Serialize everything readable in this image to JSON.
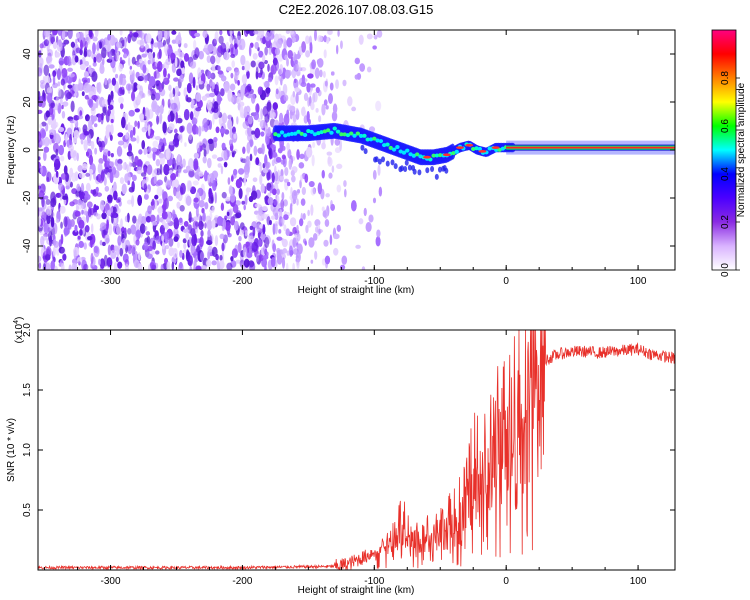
{
  "title": "C2E2.2026.107.08.03.G15",
  "chart_data": [
    {
      "type": "heatmap",
      "name": "spectrogram",
      "xlabel": "Height of straight line (km)",
      "ylabel": "Frequency (Hz)",
      "xlim": [
        -355,
        128
      ],
      "ylim": [
        -50,
        50
      ],
      "xticks": [
        -300,
        -200,
        -100,
        0,
        100
      ],
      "yticks": [
        -40,
        -20,
        0,
        20,
        40
      ],
      "xtick_labels": [
        "-300",
        "-200",
        "-100",
        "0",
        "100"
      ],
      "ytick_labels": [
        "-40",
        "-20",
        "0",
        "20",
        "40"
      ],
      "colorbar": {
        "label": "Normalized spectral amplitude",
        "range": [
          0,
          1
        ],
        "ticks": [
          0.0,
          0.2,
          0.4,
          0.6,
          0.8
        ],
        "tick_labels": [
          "0.0",
          "0.2",
          "0.4",
          "0.6",
          "0.8"
        ],
        "colors": [
          "#ffffff",
          "#d9b3ff",
          "#8a2be2",
          "#4b00ff",
          "#0000ff",
          "#00ffff",
          "#00ff00",
          "#ffff00",
          "#ff8000",
          "#ff0000",
          "#ff0080"
        ]
      },
      "signal_track": {
        "x": [
          -175,
          -150,
          -130,
          -110,
          -95,
          -80,
          -65,
          -55,
          -45,
          -35,
          -28,
          -22,
          -15,
          -8,
          0,
          50,
          128
        ],
        "freq": [
          7,
          7,
          8,
          6,
          3,
          0,
          -3,
          -3,
          -2,
          1,
          2,
          0,
          -1,
          1,
          1,
          1,
          1
        ]
      },
      "noise_region": [
        -355,
        -130
      ]
    },
    {
      "type": "line",
      "name": "snr",
      "xlabel": "Height of straight line (km)",
      "ylabel": "SNR (10 * v/v)",
      "scale_label": "(x10",
      "scale_exp": "4",
      "scale_close": ")",
      "xlim": [
        -355,
        128
      ],
      "ylim": [
        0,
        2.0
      ],
      "xticks": [
        -300,
        -200,
        -100,
        0,
        100
      ],
      "yticks": [
        0.5,
        1.0,
        1.5,
        2.0
      ],
      "xtick_labels": [
        "-300",
        "-200",
        "-100",
        "0",
        "100"
      ],
      "ytick_labels": [
        "0.5",
        "1.0",
        "1.5",
        "2.0"
      ],
      "color": "#e8302a",
      "series": [
        {
          "name": "SNR",
          "x": [
            -355,
            -300,
            -200,
            -130,
            -120,
            -105,
            -95,
            -85,
            -78,
            -70,
            -60,
            -50,
            -40,
            -30,
            -25,
            -20,
            -15,
            -10,
            -5,
            0,
            5,
            10,
            20,
            30,
            40,
            50,
            60,
            70,
            80,
            90,
            100,
            110,
            120,
            128
          ],
          "y": [
            0.02,
            0.02,
            0.02,
            0.03,
            0.05,
            0.12,
            0.2,
            0.3,
            0.45,
            0.25,
            0.3,
            0.35,
            0.45,
            0.6,
            0.85,
            1.0,
            0.9,
            1.05,
            1.15,
            1.2,
            1.35,
            1.5,
            1.65,
            1.75,
            1.8,
            1.82,
            1.82,
            1.81,
            1.82,
            1.83,
            1.84,
            1.8,
            1.78,
            1.76
          ]
        }
      ]
    }
  ]
}
